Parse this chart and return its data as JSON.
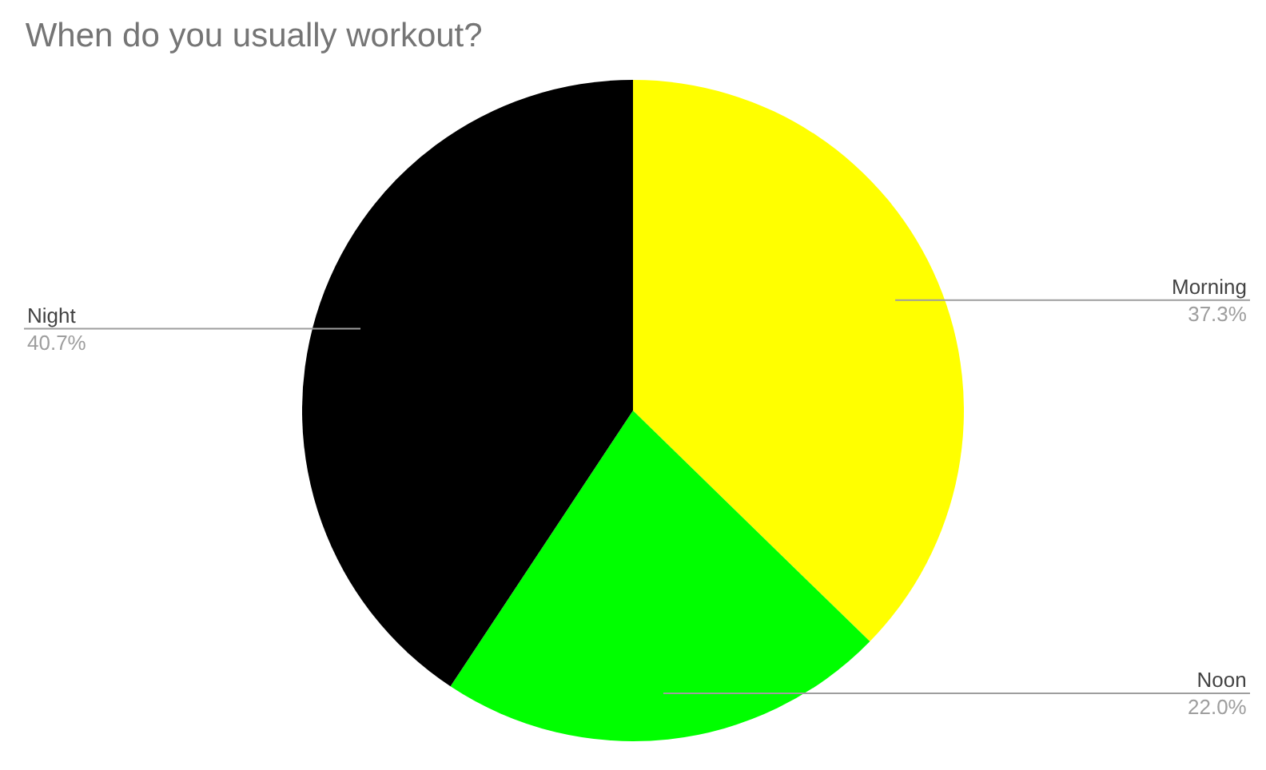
{
  "chart_data": {
    "type": "pie",
    "title": "When do you usually workout?",
    "categories": [
      "Morning",
      "Noon",
      "Night"
    ],
    "values": [
      37.3,
      22.0,
      40.7
    ],
    "value_labels": [
      "37.3%",
      "22.0%",
      "40.7%"
    ],
    "colors": [
      "#ffff00",
      "#00ff00",
      "#000000"
    ],
    "legend": false
  }
}
